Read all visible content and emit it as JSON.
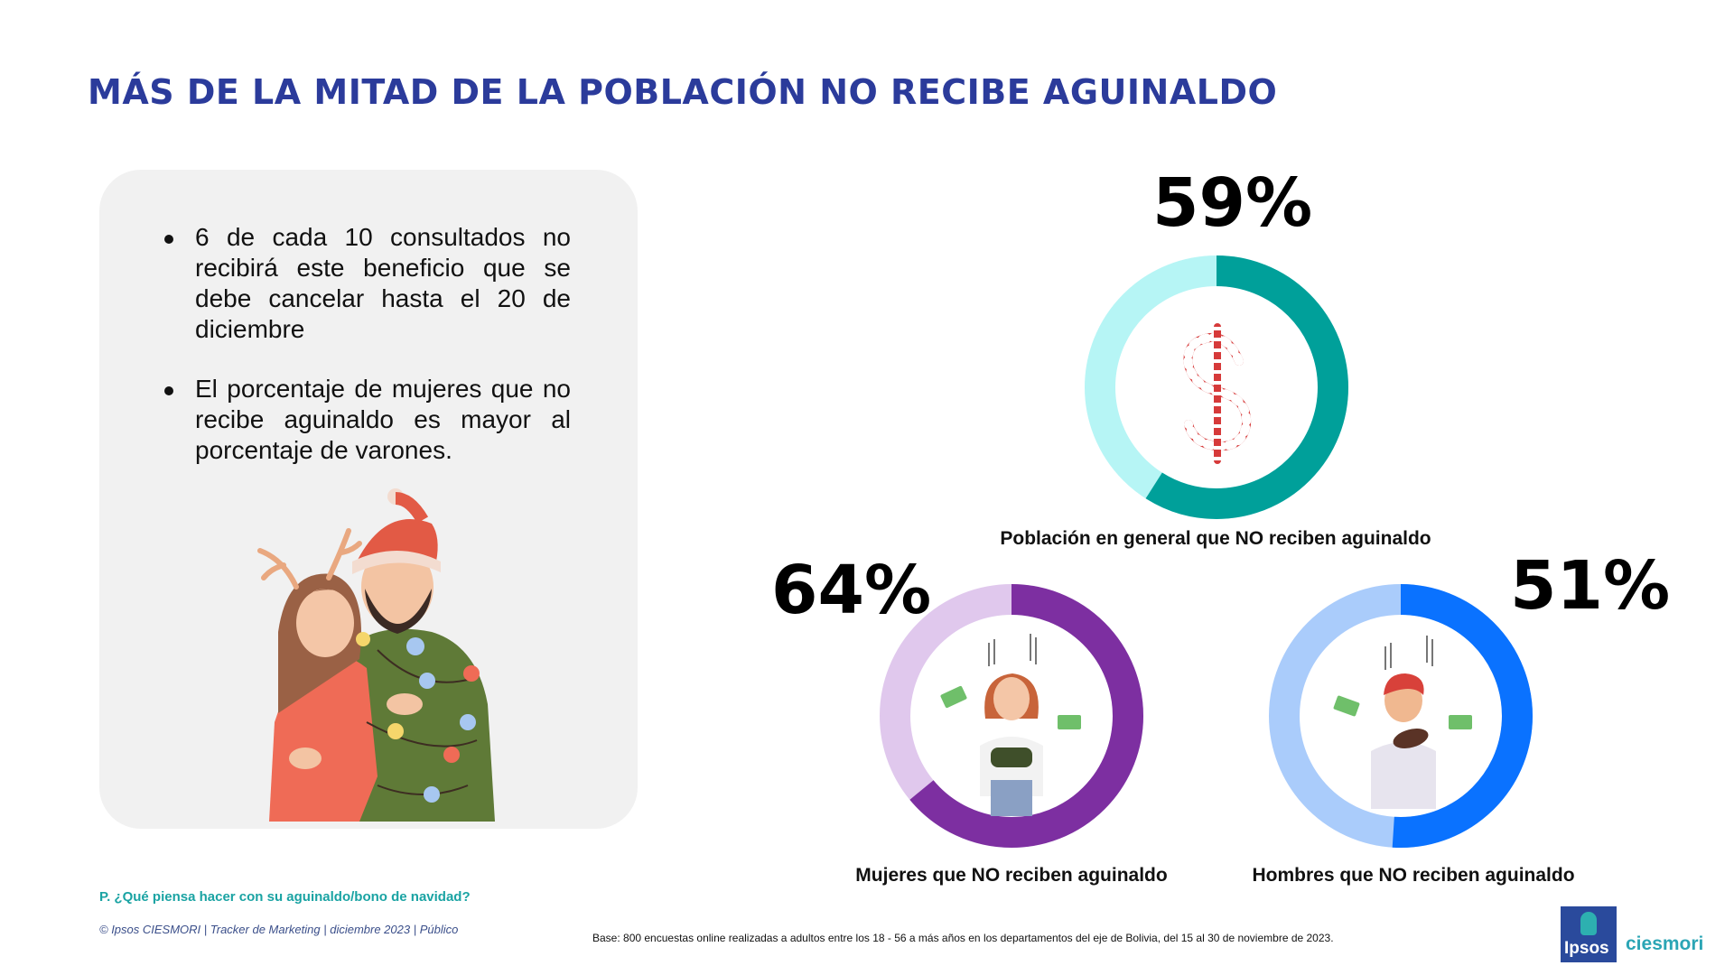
{
  "title": "MÁS DE LA MITAD DE LA POBLACIÓN NO RECIBE AGUINALDO",
  "bullets": [
    "6 de cada 10 consultados no recibirá este beneficio que se debe cancelar hasta el 20 de diciembre",
    "El porcentaje de mujeres que no recibe aguinaldo es mayor al porcentaje de varones."
  ],
  "question": "P. ¿Qué piensa hacer con su aguinaldo/bono de navidad?",
  "footer": "© Ipsos CIESMORI | Tracker de Marketing | diciembre 2023 | Público",
  "base": "Base: 800 encuestas online realizadas a adultos entre los 18 - 56 a más años en los departamentos del eje de Bolivia, del 15 al 30 de noviembre de 2023.",
  "logo": {
    "left": "Ipsos",
    "right": "ciesmori"
  },
  "icons": {
    "general": "candy-cane-dollar-icon",
    "women": "worried-woman-wallet-icon",
    "men": "worried-man-wallet-icon",
    "illustration": "christmas-couple-illustration"
  },
  "chart_data": {
    "type": "pie",
    "donuts": [
      {
        "id": "general",
        "label": "Población en general que NO reciben aguinaldo",
        "value": 59,
        "display": "59%",
        "color": "#00a09a",
        "track": "#b6f5f5"
      },
      {
        "id": "women",
        "label": "Mujeres que NO reciben aguinaldo",
        "value": 64,
        "display": "64%",
        "color": "#7d2fa1",
        "track": "#e0c8ed"
      },
      {
        "id": "men",
        "label": "Hombres que NO reciben aguinaldo",
        "value": 51,
        "display": "51%",
        "color": "#0a72ff",
        "track": "#aaccfb"
      }
    ]
  }
}
